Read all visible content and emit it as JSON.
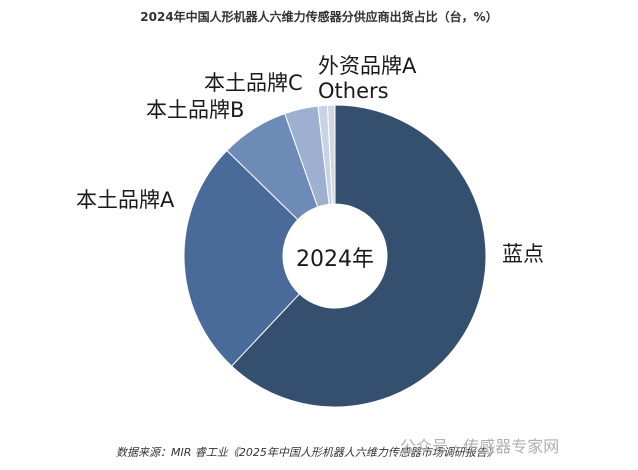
{
  "title": "2024年中国人形机器人六维力传感器分供应商出货占比（台，%）",
  "center_label": "2024年",
  "source": "数据来源：MIR 睿工业《2025年中国人形机器人六维力传感器市场调研报告》",
  "watermark": "公众号 · 传感器专家网",
  "labels": {
    "landian": "蓝点",
    "brand_a": "本土品牌A",
    "brand_b": "本土品牌B",
    "brand_c": "本土品牌C",
    "foreign_a": "外资品牌A",
    "others": "Others"
  },
  "chart_data": {
    "type": "pie",
    "variant": "donut",
    "title": "2024年中国人形机器人六维力传感器分供应商出货占比（台，%）",
    "center_text": "2024年",
    "categories": [
      "蓝点",
      "本土品牌A",
      "本土品牌B",
      "本土品牌C",
      "外资品牌A",
      "Others"
    ],
    "values": [
      62.0,
      25.3,
      7.3,
      3.6,
      1.0,
      0.8
    ],
    "colors": [
      "#354f6f",
      "#4a6a9a",
      "#6e8bb8",
      "#9eb0cf",
      "#c6d4e6",
      "#d4d8de"
    ],
    "legend": "none (labels placed beside slices)",
    "start_angle": "12 o'clock, clockwise"
  }
}
